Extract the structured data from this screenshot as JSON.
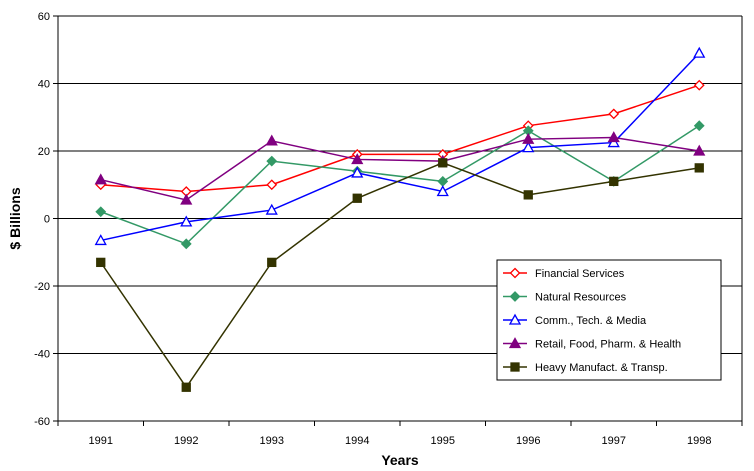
{
  "chart_data": {
    "type": "line",
    "title": "",
    "xlabel": "Years",
    "ylabel": "$ Billions",
    "ylim": [
      -60,
      60
    ],
    "yticks": [
      60,
      40,
      20,
      0,
      -20,
      -40,
      -60
    ],
    "categories": [
      "1991",
      "1992",
      "1993",
      "1994",
      "1995",
      "1996",
      "1997",
      "1998"
    ],
    "grid": "horizontal",
    "legend_position": "bottom-right",
    "series": [
      {
        "name": "Financial Services",
        "color": "#ff0000",
        "marker": "diamond-open",
        "values": [
          10,
          8,
          10,
          19,
          19,
          27.5,
          31,
          39.5
        ]
      },
      {
        "name": "Natural Resources",
        "color": "#339966",
        "marker": "diamond-filled",
        "values": [
          2,
          -7.5,
          17,
          14,
          11,
          26,
          11,
          27.5
        ]
      },
      {
        "name": "Comm., Tech. & Media",
        "color": "#0000ff",
        "marker": "triangle-open",
        "values": [
          -6.5,
          -1,
          2.5,
          13.5,
          8,
          21,
          22.5,
          49
        ]
      },
      {
        "name": "Retail, Food, Pharm. & Health",
        "color": "#800080",
        "marker": "triangle-filled",
        "values": [
          11.5,
          5.5,
          23,
          17.5,
          17,
          23.5,
          24,
          20
        ]
      },
      {
        "name": "Heavy Manufact. & Transp.",
        "color": "#333300",
        "marker": "square-filled",
        "values": [
          -13,
          -50,
          -13,
          6,
          16.5,
          7,
          11,
          15
        ]
      }
    ]
  }
}
